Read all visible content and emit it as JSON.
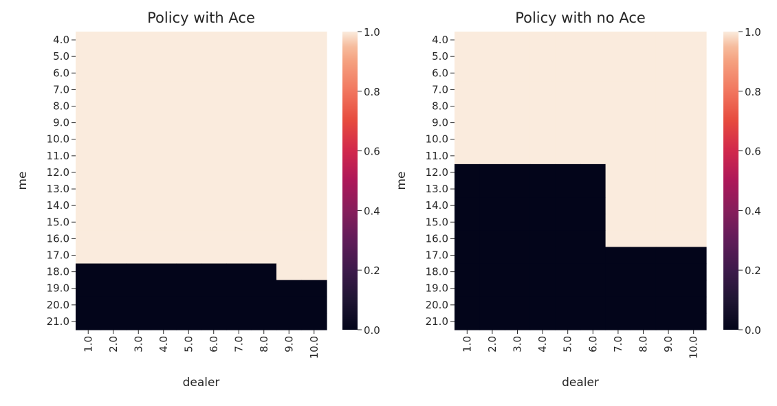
{
  "chart_data": [
    {
      "type": "heatmap",
      "title": "Policy with Ace",
      "xlabel": "dealer",
      "ylabel": "me",
      "x_categories": [
        "1.0",
        "2.0",
        "3.0",
        "4.0",
        "5.0",
        "6.0",
        "7.0",
        "8.0",
        "9.0",
        "10.0"
      ],
      "y_categories": [
        "4.0",
        "5.0",
        "6.0",
        "7.0",
        "8.0",
        "9.0",
        "10.0",
        "11.0",
        "12.0",
        "13.0",
        "14.0",
        "15.0",
        "16.0",
        "17.0",
        "18.0",
        "19.0",
        "20.0",
        "21.0"
      ],
      "values": [
        [
          1,
          1,
          1,
          1,
          1,
          1,
          1,
          1,
          1,
          1
        ],
        [
          1,
          1,
          1,
          1,
          1,
          1,
          1,
          1,
          1,
          1
        ],
        [
          1,
          1,
          1,
          1,
          1,
          1,
          1,
          1,
          1,
          1
        ],
        [
          1,
          1,
          1,
          1,
          1,
          1,
          1,
          1,
          1,
          1
        ],
        [
          1,
          1,
          1,
          1,
          1,
          1,
          1,
          1,
          1,
          1
        ],
        [
          1,
          1,
          1,
          1,
          1,
          1,
          1,
          1,
          1,
          1
        ],
        [
          1,
          1,
          1,
          1,
          1,
          1,
          1,
          1,
          1,
          1
        ],
        [
          1,
          1,
          1,
          1,
          1,
          1,
          1,
          1,
          1,
          1
        ],
        [
          1,
          1,
          1,
          1,
          1,
          1,
          1,
          1,
          1,
          1
        ],
        [
          1,
          1,
          1,
          1,
          1,
          1,
          1,
          1,
          1,
          1
        ],
        [
          1,
          1,
          1,
          1,
          1,
          1,
          1,
          1,
          1,
          1
        ],
        [
          1,
          1,
          1,
          1,
          1,
          1,
          1,
          1,
          1,
          1
        ],
        [
          1,
          1,
          1,
          1,
          1,
          1,
          1,
          1,
          1,
          1
        ],
        [
          1,
          1,
          1,
          1,
          1,
          1,
          1,
          1,
          1,
          1
        ],
        [
          0,
          0,
          0,
          0,
          0,
          0,
          0,
          0,
          1,
          1
        ],
        [
          0,
          0,
          0,
          0,
          0,
          0,
          0,
          0,
          0,
          0
        ],
        [
          0,
          0,
          0,
          0,
          0,
          0,
          0,
          0,
          0,
          0
        ],
        [
          0,
          0,
          0,
          0,
          0,
          0,
          0,
          0,
          0,
          0
        ]
      ],
      "colorbar": {
        "range": [
          0.0,
          1.0
        ],
        "ticks": [
          "0.0",
          "0.2",
          "0.4",
          "0.6",
          "0.8",
          "1.0"
        ]
      }
    },
    {
      "type": "heatmap",
      "title": "Policy with no Ace",
      "xlabel": "dealer",
      "ylabel": "me",
      "x_categories": [
        "1.0",
        "2.0",
        "3.0",
        "4.0",
        "5.0",
        "6.0",
        "7.0",
        "8.0",
        "9.0",
        "10.0"
      ],
      "y_categories": [
        "4.0",
        "5.0",
        "6.0",
        "7.0",
        "8.0",
        "9.0",
        "10.0",
        "11.0",
        "12.0",
        "13.0",
        "14.0",
        "15.0",
        "16.0",
        "17.0",
        "18.0",
        "19.0",
        "20.0",
        "21.0"
      ],
      "values": [
        [
          1,
          1,
          1,
          1,
          1,
          1,
          1,
          1,
          1,
          1
        ],
        [
          1,
          1,
          1,
          1,
          1,
          1,
          1,
          1,
          1,
          1
        ],
        [
          1,
          1,
          1,
          1,
          1,
          1,
          1,
          1,
          1,
          1
        ],
        [
          1,
          1,
          1,
          1,
          1,
          1,
          1,
          1,
          1,
          1
        ],
        [
          1,
          1,
          1,
          1,
          1,
          1,
          1,
          1,
          1,
          1
        ],
        [
          1,
          1,
          1,
          1,
          1,
          1,
          1,
          1,
          1,
          1
        ],
        [
          1,
          1,
          1,
          1,
          1,
          1,
          1,
          1,
          1,
          1
        ],
        [
          1,
          1,
          1,
          1,
          1,
          1,
          1,
          1,
          1,
          1
        ],
        [
          0,
          0,
          0,
          0,
          0,
          0,
          1,
          1,
          1,
          1
        ],
        [
          0,
          0,
          0,
          0,
          0,
          0,
          1,
          1,
          1,
          1
        ],
        [
          0,
          0,
          0,
          0,
          0,
          0,
          1,
          1,
          1,
          1
        ],
        [
          0,
          0,
          0,
          0,
          0,
          0,
          1,
          1,
          1,
          1
        ],
        [
          0,
          0,
          0,
          0,
          0,
          0,
          1,
          1,
          1,
          1
        ],
        [
          0,
          0,
          0,
          0,
          0,
          0,
          0,
          0,
          0,
          0
        ],
        [
          0,
          0,
          0,
          0,
          0,
          0,
          0,
          0,
          0,
          0
        ],
        [
          0,
          0,
          0,
          0,
          0,
          0,
          0,
          0,
          0,
          0
        ],
        [
          0,
          0,
          0,
          0,
          0,
          0,
          0,
          0,
          0,
          0
        ],
        [
          0,
          0,
          0,
          0,
          0,
          0,
          0,
          0,
          0,
          0
        ]
      ],
      "colorbar": {
        "range": [
          0.0,
          1.0
        ],
        "ticks": [
          "0.0",
          "0.2",
          "0.4",
          "0.6",
          "0.8",
          "1.0"
        ]
      }
    }
  ]
}
